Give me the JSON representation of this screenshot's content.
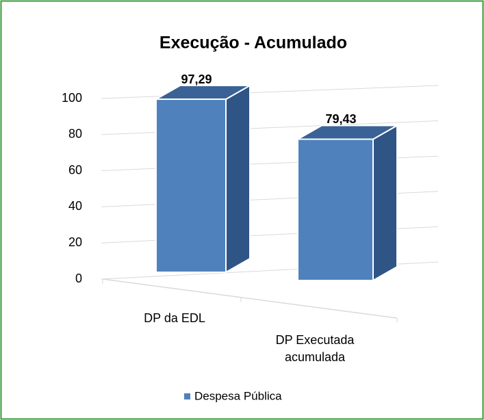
{
  "chart_data": {
    "type": "bar3d",
    "title": "Execução - Acumulado",
    "categories": [
      "DP da EDL",
      "DP Executada acumulada"
    ],
    "series": [
      {
        "name": "Despesa Pública",
        "color": "#4f81bd",
        "values": [
          97.29,
          79.43
        ],
        "value_labels": [
          "97,29",
          "79,43"
        ]
      }
    ],
    "ylim": [
      0,
      100
    ],
    "yticks": [
      0,
      20,
      40,
      60,
      80,
      100
    ],
    "grid": true,
    "legend": "bottom"
  }
}
